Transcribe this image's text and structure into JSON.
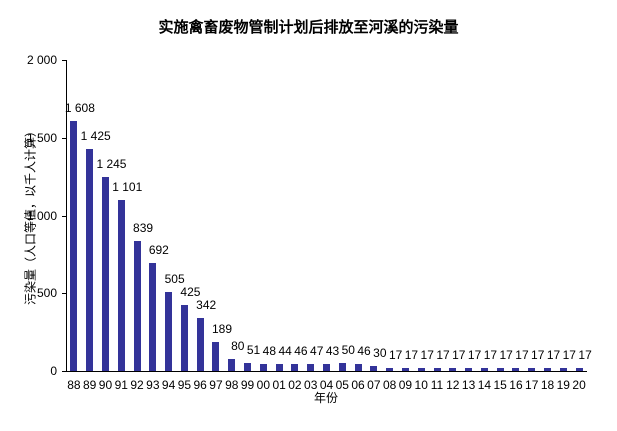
{
  "chart_data": {
    "type": "bar",
    "title": "实施禽畜废物管制计划后排放至河溪的污染量",
    "xlabel": "年份",
    "ylabel": "污染量（人口等值，以千人计算）",
    "ylim": [
      0,
      2000
    ],
    "yticks": [
      "0",
      "500",
      "1 000",
      "1 500",
      "2 000"
    ],
    "grid": false,
    "legend": null,
    "categories": [
      "88",
      "89",
      "90",
      "91",
      "92",
      "93",
      "94",
      "95",
      "96",
      "97",
      "98",
      "99",
      "00",
      "01",
      "02",
      "03",
      "04",
      "05",
      "06",
      "07",
      "08",
      "09",
      "10",
      "11",
      "12",
      "13",
      "14",
      "15",
      "16",
      "17",
      "18",
      "19",
      "20"
    ],
    "values": [
      1608,
      1425,
      1245,
      1101,
      839,
      692,
      505,
      425,
      342,
      189,
      80,
      51,
      48,
      44,
      46,
      47,
      43,
      50,
      46,
      30,
      17,
      17,
      17,
      17,
      17,
      17,
      17,
      17,
      17,
      17,
      17,
      17,
      17
    ],
    "value_labels": [
      "1 608",
      "1 425",
      "1 245",
      "1 101",
      "839",
      "692",
      "505",
      "425",
      "342",
      "189",
      "80",
      "51",
      "48",
      "44",
      "46",
      "47",
      "43",
      "50",
      "46",
      "30",
      "17",
      "17",
      "17",
      "17",
      "17",
      "17",
      "17",
      "17",
      "17",
      "17",
      "17",
      "17",
      "17"
    ],
    "bar_color": "#333399"
  }
}
